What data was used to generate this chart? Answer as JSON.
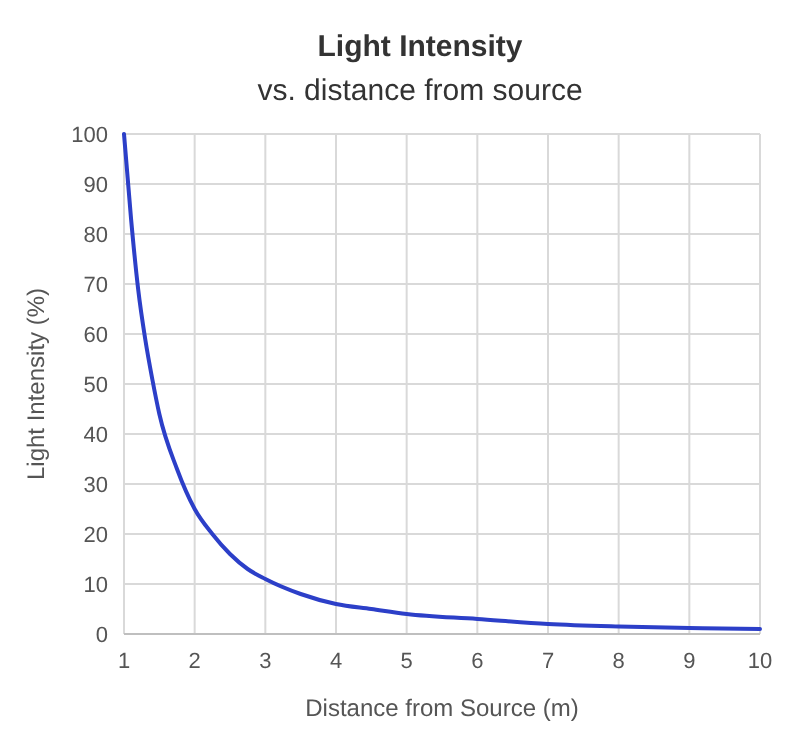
{
  "chart_data": {
    "type": "line",
    "title": "Light Intensity",
    "subtitle": "vs. distance from source",
    "xlabel": "Distance from Source (m)",
    "ylabel": "Light Intensity (%)",
    "x": [
      1,
      1.1,
      1.2,
      1.3,
      1.4,
      1.5,
      1.75,
      2,
      2.25,
      2.5,
      2.75,
      3,
      3.5,
      4,
      4.5,
      5,
      6,
      7,
      8,
      9,
      10
    ],
    "series": [
      {
        "color": "#2c3fc8",
        "values": [
          100,
          83,
          69,
          59,
          51,
          44,
          33,
          25,
          20,
          16,
          13,
          11,
          8,
          6,
          5,
          4,
          3,
          2,
          1.5,
          1.2,
          1
        ]
      }
    ],
    "xlim": [
      1,
      10
    ],
    "xticks": [
      1,
      2,
      3,
      4,
      5,
      6,
      7,
      8,
      9,
      10
    ],
    "ylim": [
      0,
      100
    ],
    "yticks": [
      0,
      10,
      20,
      30,
      40,
      50,
      60,
      70,
      80,
      90,
      100
    ],
    "grid": true,
    "marker": "none",
    "line_style": "solid"
  }
}
